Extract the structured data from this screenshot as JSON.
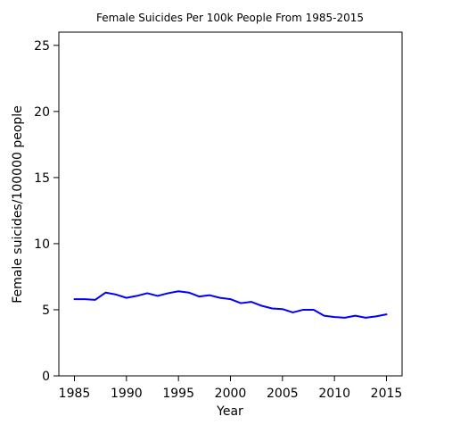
{
  "chart_data": {
    "type": "line",
    "title": "Female Suicides Per 100k People From 1985-2015",
    "xlabel": "Year",
    "ylabel": "Female suicides/100000 people",
    "xlim": [
      1983.5,
      2016.5
    ],
    "ylim": [
      0,
      26
    ],
    "grid": false,
    "x_ticks": [
      1985,
      1990,
      1995,
      2000,
      2005,
      2010,
      2015
    ],
    "y_ticks": [
      0,
      5,
      10,
      15,
      20,
      25
    ],
    "series": [
      {
        "color": "#0000ff",
        "x": [
          1985,
          1986,
          1987,
          1988,
          1989,
          1990,
          1991,
          1992,
          1993,
          1994,
          1995,
          1996,
          1997,
          1998,
          1999,
          2000,
          2001,
          2002,
          2003,
          2004,
          2005,
          2006,
          2007,
          2008,
          2009,
          2010,
          2011,
          2012,
          2013,
          2014,
          2015
        ],
        "y": [
          5.8,
          5.8,
          5.75,
          6.3,
          6.15,
          5.9,
          6.05,
          6.25,
          6.05,
          6.25,
          6.4,
          6.3,
          6.0,
          6.1,
          5.9,
          5.8,
          5.5,
          5.6,
          5.3,
          5.1,
          5.05,
          4.8,
          5.0,
          5.0,
          4.55,
          4.45,
          4.4,
          4.55,
          4.4,
          4.5,
          4.65
        ]
      }
    ]
  }
}
